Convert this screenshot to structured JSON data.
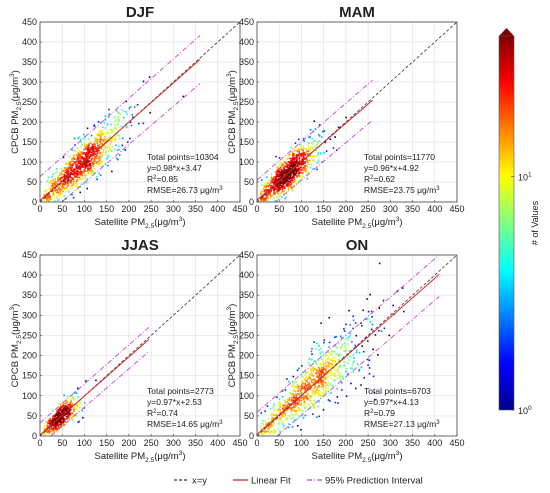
{
  "chart_data": {
    "type": "scatter",
    "subtype": "density-scatter",
    "colorbar": {
      "label": "# of Values",
      "scale": "log",
      "range": [
        1,
        40
      ],
      "ticks": [
        {
          "base": "10",
          "exp": "0",
          "value": 1
        },
        {
          "base": "10",
          "exp": "1",
          "value": 10
        }
      ],
      "colormap": [
        "#00008f",
        "#0000ff",
        "#0080ff",
        "#00ffff",
        "#80ff80",
        "#ffff00",
        "#ff8000",
        "#ff0000",
        "#800000"
      ]
    },
    "legend": {
      "placement": "bottom",
      "items": [
        {
          "label": "x=y",
          "color": "#333333",
          "style": "dashed"
        },
        {
          "label": "Linear Fit",
          "color": "#d62728",
          "style": "solid"
        },
        {
          "label": "95% Prediction Interval",
          "color": "#cc44cc",
          "style": "dash-dot"
        }
      ]
    },
    "panels": [
      {
        "title": "DJF",
        "xlabel": {
          "main": "Satellite PM",
          "sub": "2.5",
          "unit": "(μg/m",
          "unit_sup": "3",
          "unit_end": ")"
        },
        "ylabel": {
          "main": "CPCB PM",
          "sub": "2.5",
          "unit": "(μg/m",
          "unit_sup": "3",
          "unit_end": ")"
        },
        "xlim": [
          0,
          450
        ],
        "ylim": [
          0,
          450
        ],
        "ticks": [
          0,
          50,
          100,
          150,
          200,
          250,
          300,
          350,
          400,
          450
        ],
        "grid": true,
        "stats": {
          "points": "Total points=10304",
          "fit": "y=0.98*x+3.47",
          "r2_pre": "R",
          "r2_sup": "2",
          "r2_post": "=0.85",
          "rmse": "RMSE=26.73 μg/m",
          "rmse_sup": "3"
        },
        "fit": {
          "slope": 0.98,
          "intercept": 3.47,
          "band": 60,
          "xmax": 360
        },
        "cloud": {
          "n": 900,
          "center": [
            95,
            95
          ],
          "spread": [
            55,
            40
          ],
          "max_x": 350
        }
      },
      {
        "title": "MAM",
        "xlabel": {
          "main": "Satellite PM",
          "sub": "2.5",
          "unit": "(μg/m",
          "unit_sup": "3",
          "unit_end": ")"
        },
        "ylabel": {
          "main": "CPCB PM",
          "sub": "2.5",
          "unit": "(μg/m",
          "unit_sup": "3",
          "unit_end": ")"
        },
        "xlim": [
          0,
          450
        ],
        "ylim": [
          0,
          450
        ],
        "ticks": [
          0,
          50,
          100,
          150,
          200,
          250,
          300,
          350,
          400,
          450
        ],
        "grid": true,
        "stats": {
          "points": "Total points=11770",
          "fit": "y=0.96*x+4.92",
          "r2_pre": "R",
          "r2_sup": "2",
          "r2_post": "=0.62",
          "rmse": "RMSE=23.75 μg/m",
          "rmse_sup": "3"
        },
        "fit": {
          "slope": 0.96,
          "intercept": 4.92,
          "band": 50,
          "xmax": 260
        },
        "cloud": {
          "n": 900,
          "center": [
            70,
            75
          ],
          "spread": [
            35,
            38
          ],
          "max_x": 250
        }
      },
      {
        "title": "JJAS",
        "xlabel": {
          "main": "Satellite PM",
          "sub": "2.5",
          "unit": "(μg/m",
          "unit_sup": "3",
          "unit_end": ")"
        },
        "ylabel": {
          "main": "CPCB PM",
          "sub": "2.5",
          "unit": "(μg/m",
          "unit_sup": "3",
          "unit_end": ")"
        },
        "xlim": [
          0,
          450
        ],
        "ylim": [
          0,
          450
        ],
        "ticks": [
          0,
          50,
          100,
          150,
          200,
          250,
          300,
          350,
          400,
          450
        ],
        "grid": true,
        "stats": {
          "points": "Total points=2773",
          "fit": "y=0.97*x+2.53",
          "r2_pre": "R",
          "r2_sup": "2",
          "r2_post": "=0.74",
          "rmse": "RMSE=14.65 μg/m",
          "rmse_sup": "3"
        },
        "fit": {
          "slope": 0.97,
          "intercept": 2.53,
          "band": 30,
          "xmax": 245
        },
        "cloud": {
          "n": 450,
          "center": [
            48,
            50
          ],
          "spread": [
            22,
            22
          ],
          "max_x": 240
        }
      },
      {
        "title": "ON",
        "xlabel": {
          "main": "Satellite PM",
          "sub": "2.5",
          "unit": "(μg/m",
          "unit_sup": "3",
          "unit_end": ")"
        },
        "ylabel": {
          "main": "CPCB PM",
          "sub": "2.5",
          "unit": "(μg/m",
          "unit_sup": "3",
          "unit_end": ")"
        },
        "xlim": [
          0,
          450
        ],
        "ylim": [
          0,
          450
        ],
        "ticks": [
          0,
          50,
          100,
          150,
          200,
          250,
          300,
          350,
          400,
          450
        ],
        "grid": true,
        "stats": {
          "points": "Total points=6703",
          "fit": "y=0.97*x+4.13",
          "r2_pre": "R",
          "r2_sup": "2",
          "r2_post": "=0.79",
          "rmse": "RMSE=27.13 μg/m",
          "rmse_sup": "3"
        },
        "fit": {
          "slope": 0.97,
          "intercept": 4.13,
          "band": 55,
          "xmax": 410
        },
        "cloud": {
          "n": 850,
          "center": [
            120,
            120
          ],
          "spread": [
            70,
            55
          ],
          "max_x": 400
        }
      }
    ]
  }
}
